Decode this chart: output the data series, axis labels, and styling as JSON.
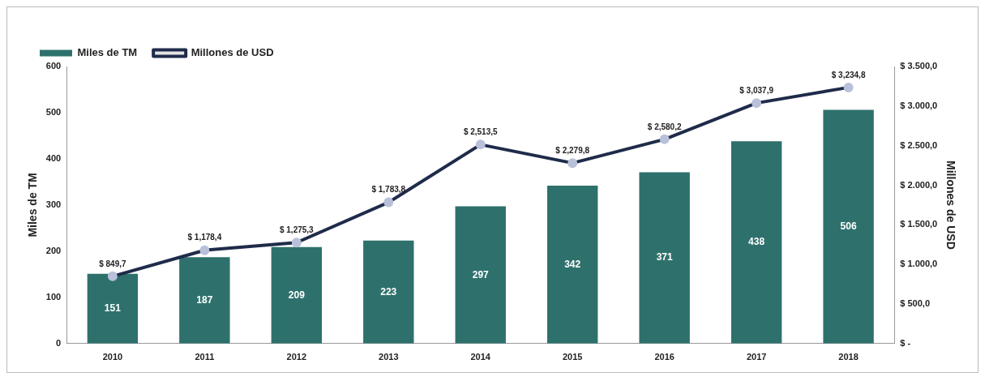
{
  "chart_data": {
    "type": "bar",
    "categories": [
      "2010",
      "2011",
      "2012",
      "2013",
      "2014",
      "2015",
      "2016",
      "2017",
      "2018"
    ],
    "ylabel": "Miles de TM",
    "y2label": "Millones de USD",
    "series": [
      {
        "name": "Miles de TM",
        "color": "#2e716c",
        "values": [
          151,
          187,
          209,
          223,
          297,
          342,
          371,
          438,
          506
        ],
        "value_labels": [
          "151",
          "187",
          "209",
          "223",
          "297",
          "342",
          "371",
          "438",
          "506"
        ]
      },
      {
        "name": "Millones de USD",
        "type": "line",
        "axis": "y2",
        "color": "#1f2b4a",
        "values": [
          849.7,
          1178.4,
          1275.3,
          1783.8,
          2513.5,
          2279.8,
          2580.2,
          3037.9,
          3234.8
        ],
        "value_labels": [
          "$ 849,7",
          "$ 1,178,4",
          "$ 1,275,3",
          "$ 1,783,8",
          "$ 2,513,5",
          "$ 2,279,8",
          "$ 2,580,2",
          "$ 3,037,9",
          "$ 3,234,8"
        ]
      }
    ],
    "ylim": [
      0,
      600
    ],
    "yticks": [
      0,
      100,
      200,
      300,
      400,
      500,
      600
    ],
    "y2lim": [
      0,
      3500
    ],
    "y2ticks": [
      {
        "value": 0,
        "label": "$ -"
      },
      {
        "value": 500,
        "label": "$ 500,0"
      },
      {
        "value": 1000,
        "label": "$ 1.000,0"
      },
      {
        "value": 1500,
        "label": "$ 1.500,0"
      },
      {
        "value": 2000,
        "label": "$ 2.000,0"
      },
      {
        "value": 2500,
        "label": "$ 2.500,0"
      },
      {
        "value": 3000,
        "label": "$ 3.000,0"
      },
      {
        "value": 3500,
        "label": "$ 3.500,0"
      }
    ],
    "grid": false,
    "legend": "top left",
    "marker": "circle",
    "line_style": "solid"
  }
}
